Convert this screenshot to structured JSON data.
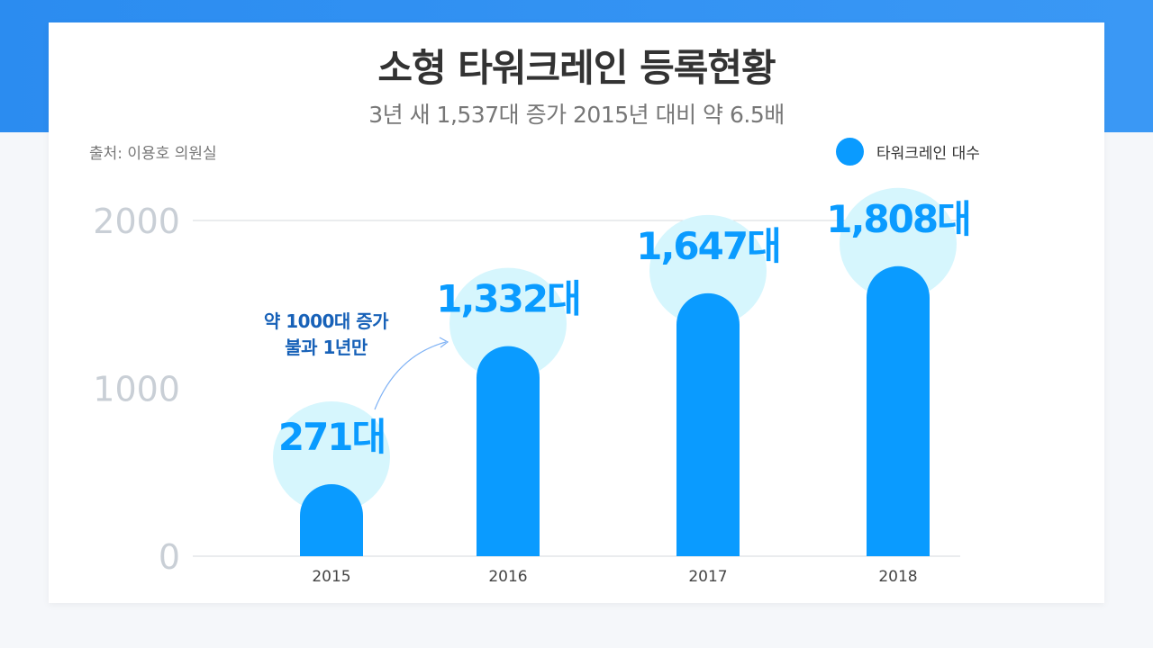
{
  "header": {
    "title": "소형 타워크레인 등록현황",
    "subtitle": "3년 새 1,537대 증가 2015년 대비 약 6.5배",
    "source": "출처: 이용호 의원실"
  },
  "annotation": {
    "line1": "약 1000대 증가",
    "line2": "불과 1년만"
  },
  "colors": {
    "bar": "#0a9bff",
    "halo": "#d6f6fd",
    "accent_band": "#2f8ff0",
    "annotation": "#1761b8"
  },
  "chart_data": {
    "type": "bar",
    "categories": [
      "2015",
      "2016",
      "2017",
      "2018"
    ],
    "series": [
      {
        "name": "타워크레인 대수",
        "values": [
          271,
          1332,
          1647,
          1808
        ]
      }
    ],
    "data_labels": [
      "271대",
      "1,332대",
      "1,647대",
      "1,808대"
    ],
    "yticks": [
      "0",
      "1000",
      "2000"
    ],
    "ylim": [
      0,
      2000
    ],
    "grid": "top line only",
    "legend": "top-right"
  }
}
